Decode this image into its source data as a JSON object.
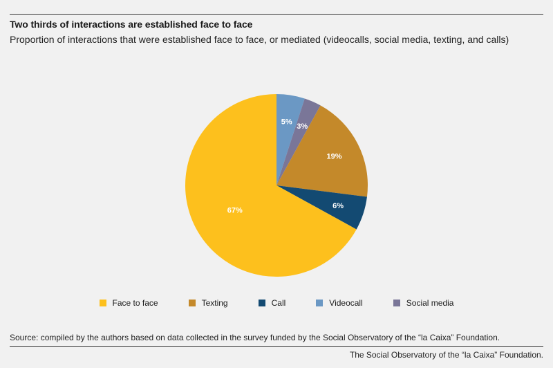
{
  "header": {
    "title": "Two thirds of interactions are established face to face",
    "subtitle": "Proportion of interactions that were established face to face, or mediated (videocalls, social media, texting, and calls)"
  },
  "chart_data": {
    "type": "pie",
    "title": "Two thirds of interactions are established face to face",
    "subtitle": "Proportion of interactions that were established face to face, or mediated (videocalls, social media, texting, and calls)",
    "slices_order_clockwise_from_top": [
      "Videocall",
      "Social media",
      "Texting",
      "Call",
      "Face to face"
    ],
    "slices": [
      {
        "name": "Videocall",
        "value": 5,
        "label": "5%",
        "color": "#6b98c4"
      },
      {
        "name": "Social media",
        "value": 3,
        "label": "3%",
        "color": "#7a7698"
      },
      {
        "name": "Texting",
        "value": 19,
        "label": "19%",
        "color": "#c4892a"
      },
      {
        "name": "Call",
        "value": 6,
        "label": "6%",
        "color": "#134a72"
      },
      {
        "name": "Face to face",
        "value": 67,
        "label": "67%",
        "color": "#fdc01d"
      }
    ],
    "legend": {
      "placement": "bottom",
      "items": [
        {
          "name": "Face to face",
          "color": "#fdc01d"
        },
        {
          "name": "Texting",
          "color": "#c4892a"
        },
        {
          "name": "Call",
          "color": "#134a72"
        },
        {
          "name": "Videocall",
          "color": "#6b98c4"
        },
        {
          "name": "Social media",
          "color": "#7a7698"
        }
      ]
    }
  },
  "footer": {
    "source": "Source: compiled by the authors based on data collected in the survey funded by the Social Observatory of the “la Caixa” Foundation.",
    "credit": "The Social Observatory of the “la Caixa” Foundation."
  }
}
